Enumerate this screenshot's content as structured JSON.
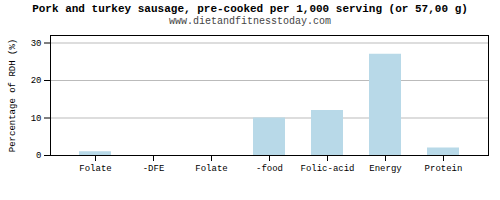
{
  "chart_data": {
    "type": "bar",
    "title": "Pork and turkey sausage, pre-cooked per 1,000 serving (or 57,00 g)",
    "subtitle": "www.dietandfitnesstoday.com",
    "categories": [
      "Folate",
      "-DFE",
      "Folate",
      "-food",
      "Folic-acid",
      "Energy",
      "Protein"
    ],
    "values": [
      1.0,
      0.0,
      0.0,
      10.0,
      12.0,
      27.0,
      2.0
    ],
    "color": "#b8d9e8",
    "ylabel": "Percentage of RDH (%)",
    "ylim": [
      0,
      32
    ],
    "yticks": [
      0,
      10,
      20,
      30
    ],
    "grid": true
  }
}
